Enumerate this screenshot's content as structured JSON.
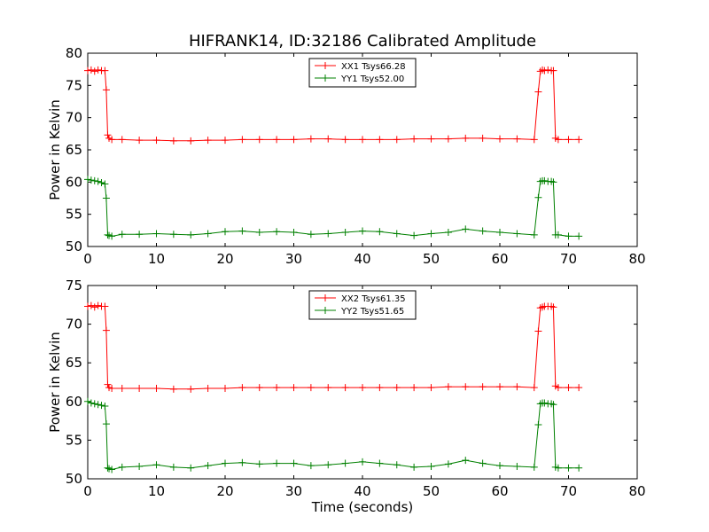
{
  "chart_data": [
    {
      "type": "line",
      "title": "HIFRANK14, ID:32186 Calibrated Amplitude",
      "xlabel": "",
      "ylabel": "Power in Kelvin",
      "xlim": [
        0,
        80
      ],
      "ylim": [
        50,
        80
      ],
      "xticks": [
        "0",
        "10",
        "20",
        "30",
        "40",
        "50",
        "60",
        "70",
        "80"
      ],
      "yticks": [
        "50",
        "55",
        "60",
        "65",
        "70",
        "75",
        "80"
      ],
      "legend_position": "upper-center",
      "series": [
        {
          "name": "XX1 Tsys66.28",
          "color": "#ff0000",
          "x": [
            0,
            0.5,
            1,
            1.5,
            2,
            2.5,
            2.7,
            2.9,
            3.1,
            3.5,
            5,
            7.5,
            10,
            12.5,
            15,
            17.5,
            20,
            22.5,
            25,
            27.5,
            30,
            32.5,
            35,
            37.5,
            40,
            42.5,
            45,
            47.5,
            50,
            52.5,
            55,
            57.5,
            60,
            62.5,
            65,
            65.6,
            65.9,
            66.2,
            66.5,
            67,
            67.5,
            67.8,
            68.1,
            68.5,
            70,
            71.5
          ],
          "y": [
            77.3,
            77.4,
            77.2,
            77.4,
            77.3,
            77.3,
            74.3,
            67.3,
            66.8,
            66.6,
            66.6,
            66.5,
            66.5,
            66.4,
            66.4,
            66.5,
            66.5,
            66.6,
            66.6,
            66.6,
            66.6,
            66.7,
            66.7,
            66.6,
            66.6,
            66.6,
            66.6,
            66.7,
            66.7,
            66.7,
            66.8,
            66.8,
            66.7,
            66.7,
            66.6,
            74.0,
            77.2,
            77.4,
            77.3,
            77.4,
            77.3,
            77.3,
            66.8,
            66.6,
            66.6,
            66.6
          ]
        },
        {
          "name": "YY1 Tsys52.00",
          "color": "#008000",
          "x": [
            0,
            0.5,
            1,
            1.5,
            2,
            2.5,
            2.7,
            2.9,
            3.1,
            3.5,
            5,
            7.5,
            10,
            12.5,
            15,
            17.5,
            20,
            22.5,
            25,
            27.5,
            30,
            32.5,
            35,
            37.5,
            40,
            42.5,
            45,
            47.5,
            50,
            52.5,
            55,
            57.5,
            60,
            62.5,
            65,
            65.6,
            65.9,
            66.2,
            66.5,
            67,
            67.5,
            67.8,
            68.1,
            68.5,
            70,
            71.5
          ],
          "y": [
            60.4,
            60.3,
            60.2,
            60.1,
            59.9,
            59.7,
            57.5,
            51.8,
            51.7,
            51.6,
            51.9,
            51.9,
            52.0,
            51.9,
            51.8,
            52.0,
            52.3,
            52.4,
            52.2,
            52.3,
            52.2,
            51.9,
            52.0,
            52.2,
            52.4,
            52.3,
            52.0,
            51.7,
            52.0,
            52.2,
            52.7,
            52.4,
            52.2,
            52.0,
            51.8,
            57.6,
            60.1,
            60.2,
            60.2,
            60.1,
            60.1,
            60.0,
            51.8,
            51.8,
            51.6,
            51.6
          ]
        }
      ]
    },
    {
      "type": "line",
      "title": "",
      "xlabel": "Time (seconds)",
      "ylabel": "Power in Kelvin",
      "xlim": [
        0,
        80
      ],
      "ylim": [
        50,
        75
      ],
      "xticks": [
        "0",
        "10",
        "20",
        "30",
        "40",
        "50",
        "60",
        "70",
        "80"
      ],
      "yticks": [
        "50",
        "55",
        "60",
        "65",
        "70",
        "75"
      ],
      "legend_position": "upper-center",
      "series": [
        {
          "name": "XX2 Tsys61.35",
          "color": "#ff0000",
          "x": [
            0,
            0.5,
            1,
            1.5,
            2,
            2.5,
            2.7,
            2.9,
            3.1,
            3.5,
            5,
            7.5,
            10,
            12.5,
            15,
            17.5,
            20,
            22.5,
            25,
            27.5,
            30,
            32.5,
            35,
            37.5,
            40,
            42.5,
            45,
            47.5,
            50,
            52.5,
            55,
            57.5,
            60,
            62.5,
            65,
            65.6,
            65.9,
            66.2,
            66.5,
            67,
            67.5,
            67.8,
            68.1,
            68.5,
            70,
            71.5
          ],
          "y": [
            72.3,
            72.4,
            72.2,
            72.4,
            72.3,
            72.3,
            69.2,
            62.2,
            61.8,
            61.7,
            61.7,
            61.7,
            61.7,
            61.6,
            61.6,
            61.7,
            61.7,
            61.8,
            61.8,
            61.8,
            61.8,
            61.8,
            61.8,
            61.8,
            61.8,
            61.8,
            61.8,
            61.8,
            61.8,
            61.9,
            61.9,
            61.9,
            61.9,
            61.9,
            61.8,
            69.1,
            72.1,
            72.2,
            72.3,
            72.3,
            72.3,
            72.2,
            62.0,
            61.8,
            61.8,
            61.8
          ]
        },
        {
          "name": "YY2 Tsys51.65",
          "color": "#008000",
          "x": [
            0,
            0.5,
            1,
            1.5,
            2,
            2.5,
            2.7,
            2.9,
            3.1,
            3.5,
            5,
            7.5,
            10,
            12.5,
            15,
            17.5,
            20,
            22.5,
            25,
            27.5,
            30,
            32.5,
            35,
            37.5,
            40,
            42.5,
            45,
            47.5,
            50,
            52.5,
            55,
            57.5,
            60,
            62.5,
            65,
            65.6,
            65.9,
            66.2,
            66.5,
            67,
            67.5,
            67.8,
            68.1,
            68.5,
            70,
            71.5
          ],
          "y": [
            60.0,
            59.8,
            59.7,
            59.6,
            59.5,
            59.4,
            57.1,
            51.4,
            51.3,
            51.2,
            51.5,
            51.6,
            51.8,
            51.5,
            51.4,
            51.7,
            52.0,
            52.1,
            51.9,
            52.0,
            52.0,
            51.7,
            51.8,
            52.0,
            52.2,
            52.0,
            51.8,
            51.5,
            51.6,
            51.9,
            52.4,
            52.0,
            51.7,
            51.6,
            51.5,
            57.0,
            59.7,
            59.8,
            59.8,
            59.7,
            59.7,
            59.6,
            51.5,
            51.4,
            51.4,
            51.4
          ]
        }
      ]
    }
  ]
}
